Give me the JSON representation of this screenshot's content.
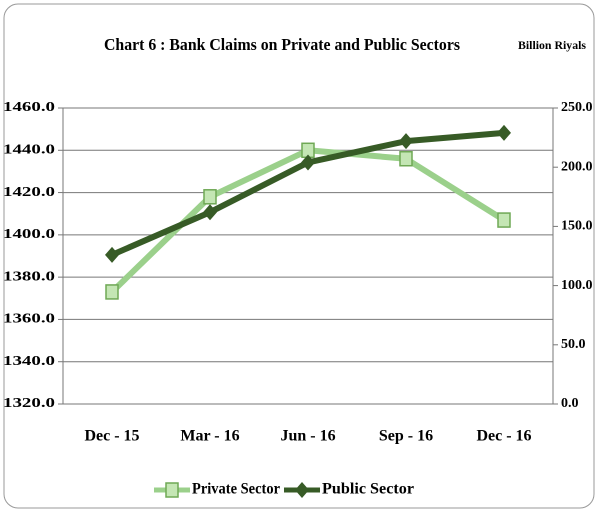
{
  "chart_data": {
    "type": "line",
    "title": "Chart 6 : Bank Claims on Private and Public Sectors",
    "unit_label": "Billion Riyals",
    "categories": [
      "Dec - 15",
      "Mar - 16",
      "Jun - 16",
      "Sep - 16",
      "Dec - 16"
    ],
    "series": [
      {
        "name": "Private Sector",
        "color": "#9bd08b",
        "marker": "square",
        "axis": "y",
        "values": [
          1373,
          1418,
          1440,
          1436,
          1407
        ]
      },
      {
        "name": "Public Sector",
        "color": "#375b26",
        "marker": "diamond",
        "axis": "y2",
        "values": [
          126,
          162,
          204,
          222,
          229
        ]
      }
    ],
    "ylim": [
      1320,
      1460
    ],
    "yticks": [
      {
        "value": 1320,
        "label": "1320.0"
      },
      {
        "value": 1340,
        "label": "1340.0"
      },
      {
        "value": 1360,
        "label": "1360.0"
      },
      {
        "value": 1380,
        "label": "1380.0"
      },
      {
        "value": 1400,
        "label": "1400.0"
      },
      {
        "value": 1420,
        "label": "1420.0"
      },
      {
        "value": 1440,
        "label": "1440.0"
      },
      {
        "value": 1460,
        "label": "1460.0"
      }
    ],
    "y2lim": [
      0,
      250
    ],
    "y2ticks": [
      {
        "value": 0,
        "label": "0.0"
      },
      {
        "value": 50,
        "label": "50.0"
      },
      {
        "value": 100,
        "label": "100.0"
      },
      {
        "value": 150,
        "label": "150.0"
      },
      {
        "value": 200,
        "label": "200.0"
      },
      {
        "value": 250,
        "label": "250.0"
      }
    ],
    "grid": true,
    "legend": "bottom"
  }
}
